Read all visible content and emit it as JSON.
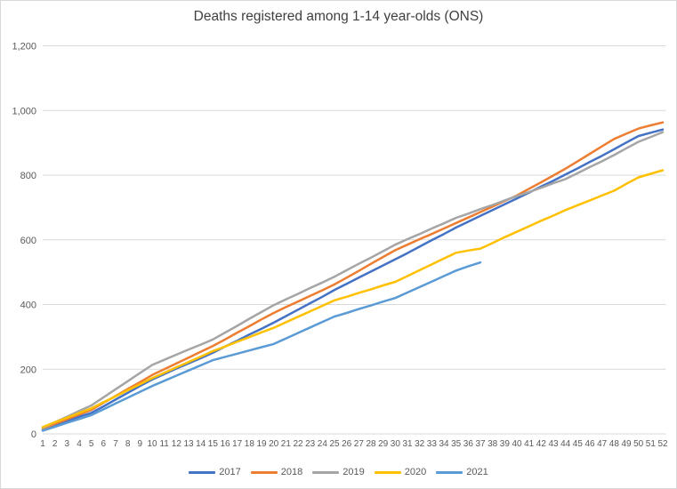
{
  "chart_data": {
    "type": "line",
    "title": "Deaths registered among 1-14 year-olds (ONS)",
    "xlabel": "",
    "ylabel": "",
    "x": [
      1,
      2,
      3,
      4,
      5,
      6,
      7,
      8,
      9,
      10,
      11,
      12,
      13,
      14,
      15,
      16,
      17,
      18,
      19,
      20,
      21,
      22,
      23,
      24,
      25,
      26,
      27,
      28,
      29,
      30,
      31,
      32,
      33,
      34,
      35,
      36,
      37,
      38,
      39,
      40,
      41,
      42,
      43,
      44,
      45,
      46,
      47,
      48,
      49,
      50,
      51,
      52
    ],
    "ylim": [
      0,
      1200
    ],
    "grid": true,
    "legend_position": "bottom",
    "y_ticks": [
      {
        "value": 0,
        "label": "0"
      },
      {
        "value": 200,
        "label": "200"
      },
      {
        "value": 400,
        "label": "400"
      },
      {
        "value": 600,
        "label": "600"
      },
      {
        "value": 800,
        "label": "800"
      },
      {
        "value": 1000,
        "label": "1,000"
      },
      {
        "value": 1200,
        "label": "1,200"
      }
    ],
    "series": [
      {
        "name": "2017",
        "color": "#4472C4",
        "values": [
          13,
          27,
          40,
          53,
          65,
          85,
          106,
          127,
          148,
          168,
          185,
          202,
          218,
          234,
          251,
          270,
          288,
          307,
          325,
          344,
          364,
          384,
          404,
          424,
          445,
          464,
          483,
          502,
          521,
          540,
          559,
          579,
          599,
          618,
          638,
          656,
          674,
          692,
          710,
          728,
          746,
          765,
          783,
          802,
          821,
          841,
          860,
          880,
          901,
          921,
          931,
          941
        ]
      },
      {
        "name": "2018",
        "color": "#ED7D31",
        "values": [
          16,
          31,
          45,
          60,
          74,
          96,
          117,
          139,
          160,
          182,
          200,
          218,
          236,
          254,
          272,
          292,
          313,
          333,
          354,
          374,
          392,
          409,
          427,
          444,
          462,
          483,
          504,
          526,
          547,
          568,
          585,
          602,
          618,
          635,
          652,
          669,
          686,
          703,
          720,
          737,
          758,
          778,
          799,
          820,
          843,
          866,
          889,
          912,
          928,
          944,
          954,
          963
        ]
      },
      {
        "name": "2019",
        "color": "#A5A5A5",
        "values": [
          18,
          36,
          53,
          71,
          88,
          113,
          138,
          163,
          188,
          213,
          229,
          245,
          261,
          276,
          292,
          313,
          334,
          356,
          377,
          398,
          416,
          433,
          451,
          468,
          486,
          506,
          526,
          545,
          565,
          585,
          602,
          618,
          635,
          651,
          668,
          681,
          695,
          708,
          722,
          735,
          748,
          761,
          775,
          788,
          806,
          825,
          843,
          862,
          883,
          903,
          918,
          933
        ]
      },
      {
        "name": "2020",
        "color": "#FFC000",
        "values": [
          21,
          36,
          50,
          65,
          79,
          98,
          116,
          135,
          153,
          172,
          189,
          206,
          222,
          239,
          256,
          270,
          285,
          299,
          314,
          328,
          345,
          362,
          379,
          396,
          413,
          424,
          436,
          447,
          459,
          470,
          488,
          506,
          524,
          542,
          560,
          567,
          573,
          590,
          608,
          625,
          642,
          659,
          675,
          692,
          707,
          722,
          737,
          752,
          773,
          793,
          804,
          815
        ]
      },
      {
        "name": "2021",
        "color": "#5B9BD5",
        "values": [
          10,
          22,
          34,
          46,
          58,
          76,
          94,
          112,
          130,
          148,
          164,
          180,
          196,
          212,
          228,
          238,
          248,
          258,
          268,
          278,
          295,
          312,
          329,
          346,
          363,
          374,
          386,
          397,
          409,
          420,
          437,
          454,
          471,
          488,
          505,
          518,
          530
        ]
      }
    ]
  },
  "colors": {
    "background": "#FFFFFF",
    "border": "#D9D9D9",
    "gridline": "#D9D9D9",
    "axis_text": "#595959",
    "title_text": "#404040"
  }
}
